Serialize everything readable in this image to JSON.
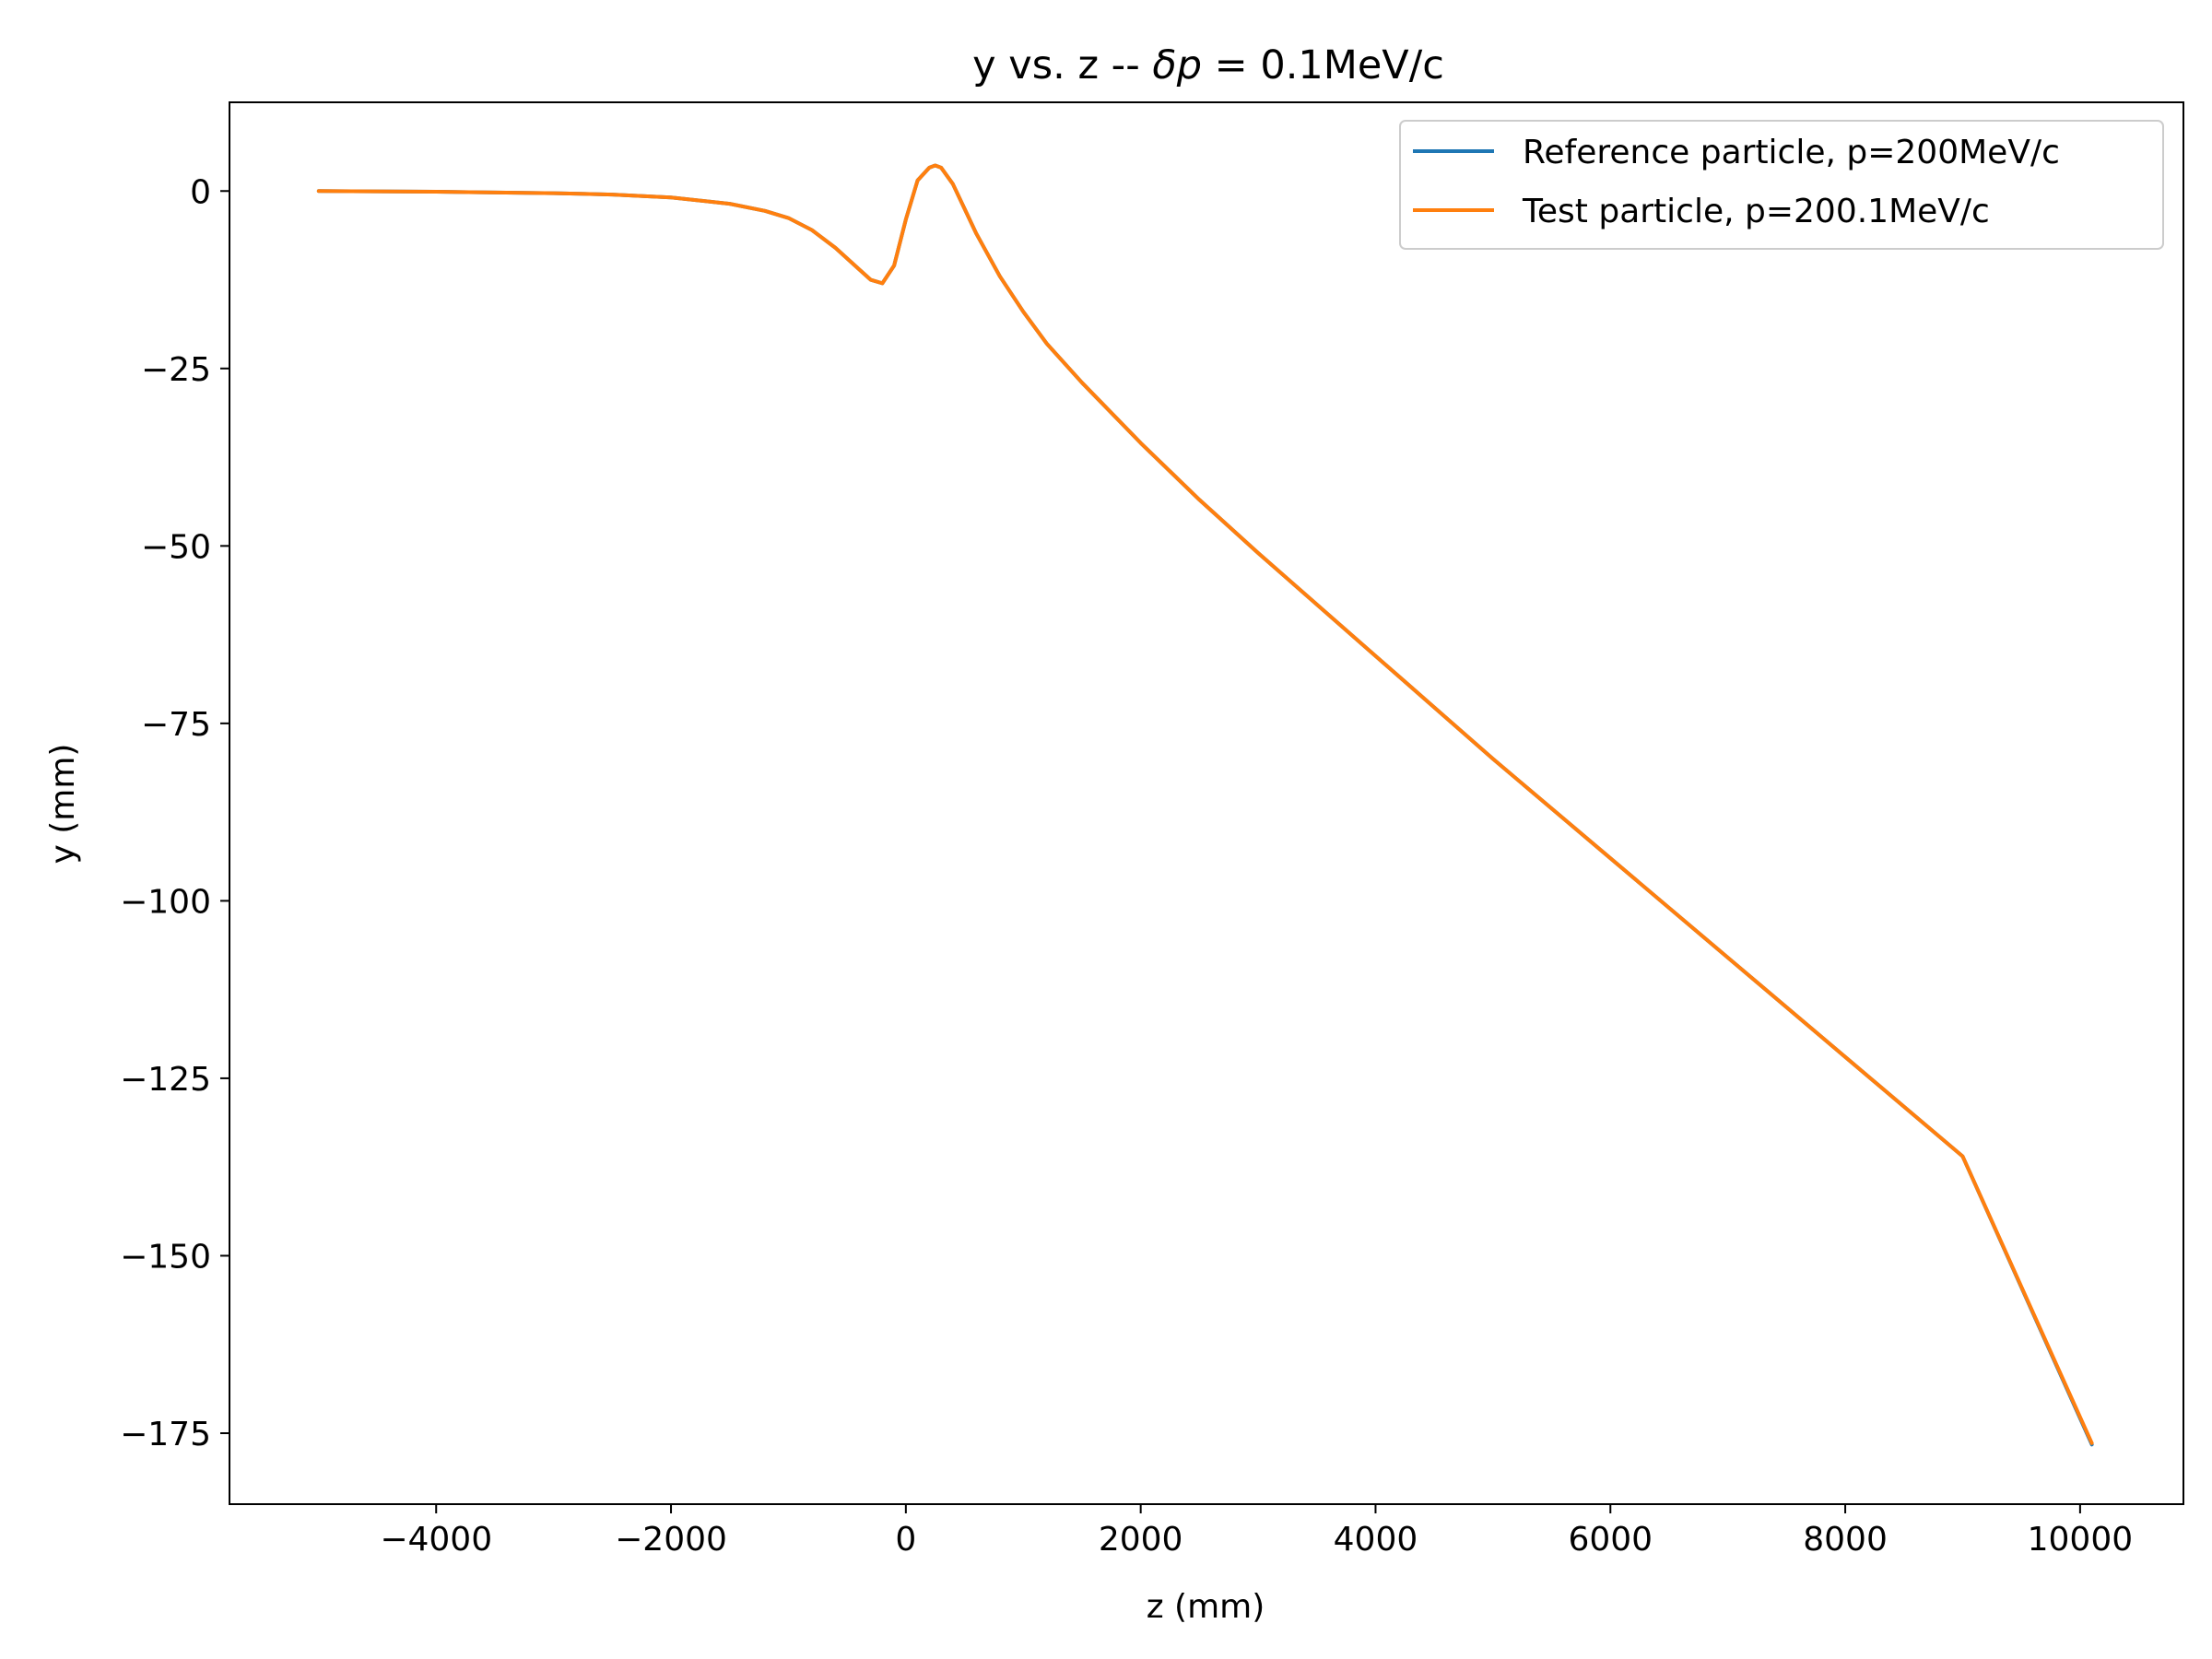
{
  "chart_data": {
    "type": "line",
    "title": {
      "main": "y vs. z -- ",
      "delta": "δ",
      "p": "p",
      "rest": " = 0.1MeV/c"
    },
    "xlabel": "z (mm)",
    "ylabel": "y (mm)",
    "xlim": [
      -5760,
      10880
    ],
    "ylim": [
      -185,
      12.5
    ],
    "xticks": [
      -4000,
      -2000,
      0,
      2000,
      4000,
      6000,
      8000,
      10000
    ],
    "xtick_labels": [
      "−4000",
      "−2000",
      "0",
      "2000",
      "4000",
      "6000",
      "8000",
      "10000"
    ],
    "yticks": [
      0,
      -25,
      -50,
      -75,
      -100,
      -125,
      -150,
      -175
    ],
    "ytick_labels": [
      "0",
      "−25",
      "−50",
      "−75",
      "−100",
      "−125",
      "−150",
      "−175"
    ],
    "grid": false,
    "legend_position": "top-right",
    "series": [
      {
        "name": "Reference particle, p=200MeV/c",
        "color": "#1f77b4",
        "x": [
          -5000,
          -4000,
          -3000,
          -2500,
          -2000,
          -1500,
          -1200,
          -1000,
          -800,
          -600,
          -400,
          -300,
          -200,
          -100,
          0,
          100,
          200,
          250,
          300,
          400,
          500,
          600,
          800,
          1000,
          1200,
          1500,
          2000,
          2500,
          3000,
          4000,
          5000,
          6000,
          7000,
          8000,
          9000,
          10100
        ],
        "y": [
          0,
          -0.1,
          -0.3,
          -0.5,
          -0.9,
          -1.8,
          -2.8,
          -3.8,
          -5.5,
          -8.0,
          -11.0,
          -12.5,
          -13.0,
          -10.5,
          -4.0,
          1.5,
          3.3,
          3.6,
          3.3,
          1.0,
          -2.5,
          -6.0,
          -12.0,
          -17.0,
          -21.5,
          -27.0,
          -35.5,
          -43.5,
          -51.0,
          -65.5,
          -80.0,
          -94.0,
          -108.0,
          -122.0,
          -136.0,
          -176.6
        ]
      },
      {
        "name": "Test particle, p=200.1MeV/c",
        "color": "#ff7f0e",
        "x": [
          -5000,
          -4000,
          -3000,
          -2500,
          -2000,
          -1500,
          -1200,
          -1000,
          -800,
          -600,
          -400,
          -300,
          -200,
          -100,
          0,
          100,
          200,
          250,
          300,
          400,
          500,
          600,
          800,
          1000,
          1200,
          1500,
          2000,
          2500,
          3000,
          4000,
          5000,
          6000,
          7000,
          8000,
          9000,
          10100
        ],
        "y": [
          0,
          -0.1,
          -0.3,
          -0.5,
          -0.9,
          -1.8,
          -2.8,
          -3.8,
          -5.5,
          -8.0,
          -11.0,
          -12.5,
          -13.0,
          -10.5,
          -4.0,
          1.5,
          3.3,
          3.6,
          3.3,
          1.0,
          -2.5,
          -6.0,
          -12.0,
          -17.0,
          -21.5,
          -27.0,
          -35.5,
          -43.5,
          -51.0,
          -65.5,
          -80.0,
          -94.0,
          -108.0,
          -122.0,
          -136.0,
          -176.4
        ]
      }
    ]
  }
}
